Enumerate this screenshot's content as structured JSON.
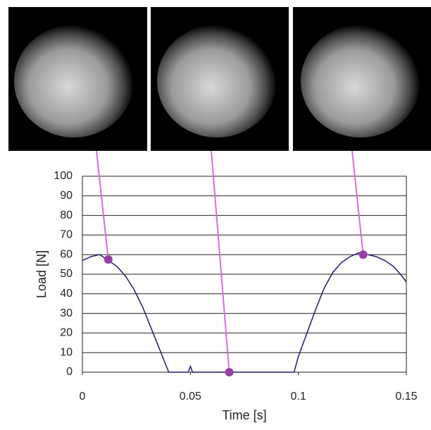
{
  "chart_data": {
    "type": "line",
    "x_label": "Time [s]",
    "y_label": "Load [N]",
    "x": [
      0,
      0.004,
      0.008,
      0.012,
      0.016,
      0.02,
      0.024,
      0.028,
      0.032,
      0.036,
      0.04,
      0.045,
      0.049,
      0.05,
      0.051,
      0.06,
      0.07,
      0.08,
      0.09,
      0.098,
      0.1,
      0.104,
      0.108,
      0.112,
      0.116,
      0.12,
      0.124,
      0.128,
      0.132,
      0.136,
      0.14,
      0.144,
      0.148,
      0.15
    ],
    "series": [
      {
        "color": "#1c1f6b",
        "values": [
          57,
          59,
          60,
          57,
          54,
          49,
          42,
          33,
          22,
          11,
          0,
          0,
          0,
          3,
          0,
          0,
          0,
          0,
          0,
          0,
          8,
          20,
          32,
          43,
          51,
          56,
          59,
          61,
          60,
          59,
          57,
          54,
          49,
          46
        ]
      }
    ],
    "highlights": {
      "color": "#9b3fa8",
      "x": [
        0.012,
        0.068,
        0.13
      ],
      "values": [
        57.5,
        0,
        60
      ]
    },
    "xlim": [
      0,
      0.15
    ],
    "xticks": [
      0,
      0.05,
      0.1,
      0.15
    ],
    "ylim": [
      0,
      100
    ],
    "yticks": [
      0,
      10,
      20,
      30,
      40,
      50,
      60,
      70,
      80,
      90,
      100
    ],
    "grid": true
  }
}
